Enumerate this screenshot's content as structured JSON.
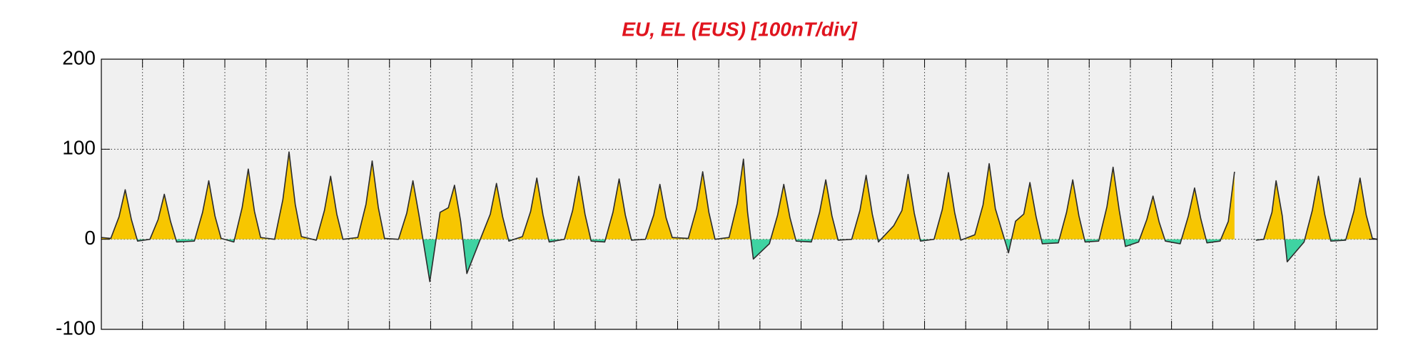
{
  "chart_data": {
    "type": "area",
    "title": "EU, EL (EUS)  [100nT/div]",
    "title_color": "#e0141e",
    "xlim": [
      0,
      31
    ],
    "xticks": [
      1,
      2,
      3,
      4,
      5,
      6,
      7,
      8,
      9,
      10,
      11,
      12,
      13,
      14,
      15,
      16,
      17,
      18,
      19,
      20,
      21,
      22,
      23,
      24,
      25,
      26,
      27,
      28,
      29,
      30
    ],
    "ylim": [
      -100,
      200
    ],
    "yticks": [
      -100,
      0,
      100,
      200
    ],
    "grid": true,
    "series": [
      {
        "positive_color": "#f7c600",
        "negative_color": "#3fd3a2",
        "line_color": "#2b2b2b",
        "x": [
          0,
          0.23,
          0.43,
          0.58,
          0.73,
          0.88,
          1.18,
          1.38,
          1.53,
          1.68,
          1.83,
          2.26,
          2.46,
          2.61,
          2.76,
          2.91,
          3.22,
          3.42,
          3.57,
          3.72,
          3.87,
          4.21,
          4.41,
          4.56,
          4.71,
          4.86,
          5.22,
          5.42,
          5.57,
          5.72,
          5.87,
          6.23,
          6.43,
          6.58,
          6.73,
          6.88,
          7.22,
          7.42,
          7.57,
          7.72,
          7.98,
          8.23,
          8.43,
          8.58,
          8.73,
          8.88,
          9.25,
          9.45,
          9.6,
          9.75,
          9.9,
          10.23,
          10.43,
          10.58,
          10.73,
          10.88,
          11.25,
          11.45,
          11.6,
          11.75,
          11.9,
          12.23,
          12.43,
          12.58,
          12.73,
          12.88,
          13.22,
          13.42,
          13.57,
          13.72,
          13.87,
          14.26,
          14.46,
          14.61,
          14.76,
          14.91,
          15.25,
          15.45,
          15.6,
          15.7,
          15.84,
          16.23,
          16.43,
          16.58,
          16.73,
          16.88,
          17.25,
          17.45,
          17.6,
          17.75,
          17.9,
          18.23,
          18.43,
          18.58,
          18.73,
          18.88,
          19.25,
          19.45,
          19.6,
          19.75,
          19.9,
          20.23,
          20.43,
          20.58,
          20.73,
          20.88,
          21.22,
          21.42,
          21.57,
          21.72,
          22.04,
          22.21,
          22.41,
          22.56,
          22.71,
          22.86,
          23.25,
          23.45,
          23.6,
          23.75,
          23.9,
          24.23,
          24.43,
          24.58,
          24.73,
          24.88,
          25.2,
          25.4,
          25.55,
          25.7,
          25.85,
          26.21,
          26.41,
          26.56,
          26.71,
          26.86,
          27.18,
          27.38,
          27.53,
          27.63,
          28.05,
          28.24,
          28.44,
          28.54,
          28.69,
          28.81,
          29.22,
          29.42,
          29.57,
          29.72,
          29.87,
          30.23,
          30.43,
          30.58,
          30.73,
          30.88,
          31
        ],
        "values": [
          2,
          1,
          25,
          55,
          22,
          -2,
          0,
          22,
          50,
          20,
          -3,
          -2,
          30,
          65,
          26,
          1,
          -3,
          35,
          78,
          31,
          2,
          0,
          44,
          97,
          39,
          3,
          -1,
          32,
          70,
          28,
          0,
          2,
          39,
          87,
          35,
          1,
          0,
          29,
          65,
          26,
          -47,
          30,
          35,
          60,
          20,
          -38,
          5,
          28,
          62,
          25,
          -2,
          3,
          31,
          68,
          27,
          -3,
          0,
          32,
          70,
          28,
          -2,
          -3,
          30,
          67,
          27,
          -1,
          0,
          27,
          61,
          24,
          2,
          1,
          34,
          75,
          30,
          0,
          2,
          40,
          89,
          30,
          -22,
          -5,
          27,
          61,
          24,
          -2,
          -3,
          30,
          66,
          26,
          -1,
          0,
          32,
          71,
          28,
          -3,
          15,
          32,
          72,
          29,
          -2,
          0,
          33,
          74,
          30,
          -1,
          5,
          38,
          84,
          34,
          -15,
          20,
          28,
          63,
          25,
          -5,
          -4,
          30,
          66,
          26,
          -3,
          -2,
          36,
          80,
          32,
          -8,
          -3,
          22,
          48,
          19,
          -2,
          -5,
          26,
          57,
          23,
          -4,
          -2,
          20,
          75,
          null,
          -1,
          0,
          30,
          65,
          26,
          -25,
          -3,
          32,
          70,
          28,
          -2,
          -1,
          31,
          68,
          27,
          1,
          0
        ]
      }
    ]
  }
}
